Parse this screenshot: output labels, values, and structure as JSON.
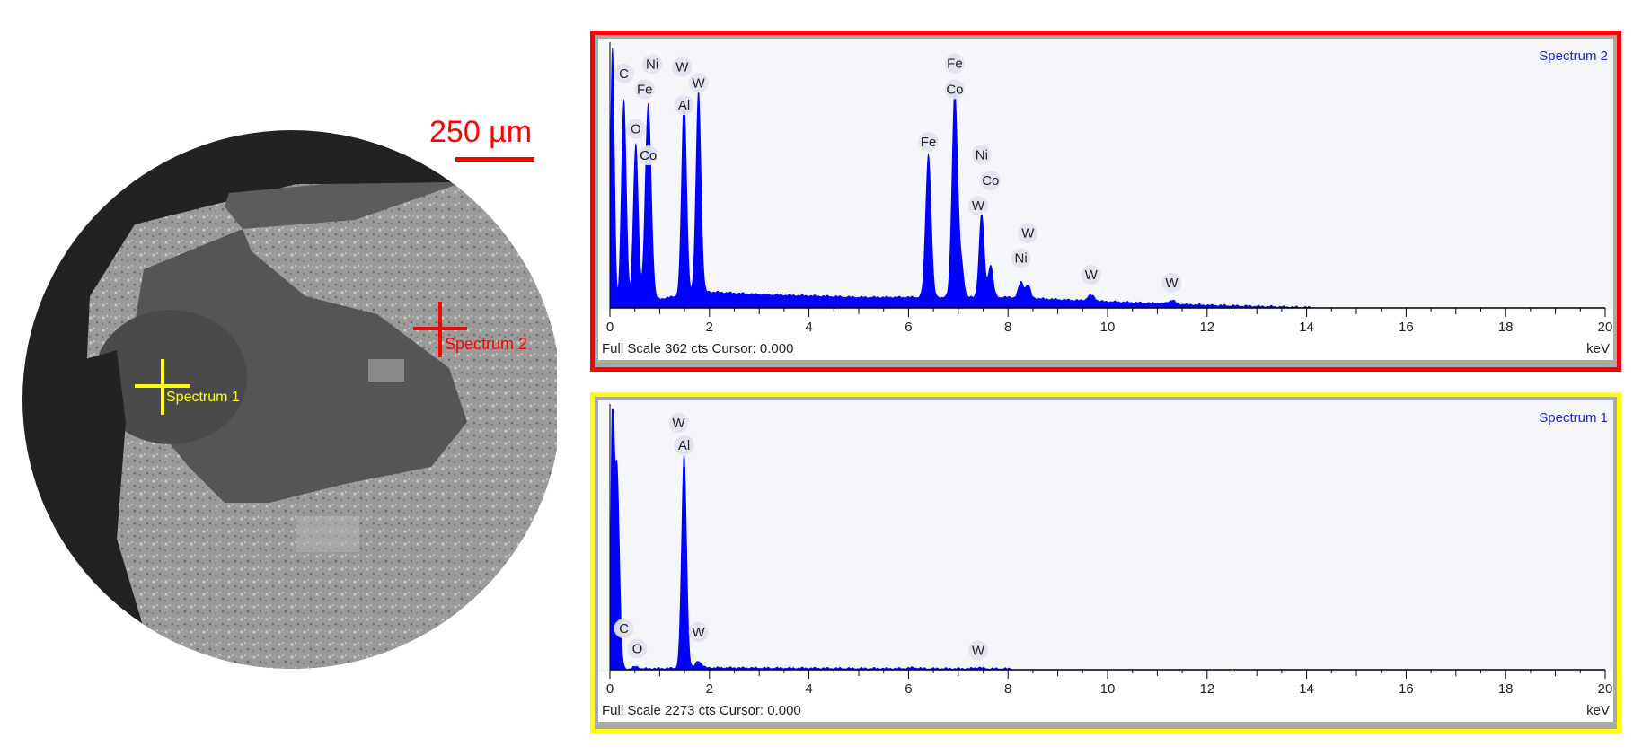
{
  "micrograph": {
    "scale_bar_label": "250 µm",
    "markers": [
      {
        "label": "Spectrum 2",
        "color": "#ff0000"
      },
      {
        "label": "Spectrum 1",
        "color": "#ffff00"
      }
    ]
  },
  "chart_data": [
    {
      "type": "area",
      "title": "Spectrum 2",
      "frame_color": "#ff0000",
      "series_color": "#0000ff",
      "xlabel": "keV",
      "xlim": [
        0,
        20
      ],
      "xticks": [
        0,
        2,
        4,
        6,
        8,
        10,
        12,
        14,
        16,
        18,
        20
      ],
      "ylim": [
        0,
        362
      ],
      "footer": "Full Scale 362 cts Cursor: 0.000",
      "grid": false,
      "peaks": [
        {
          "x": 0.05,
          "y": 362,
          "w": 0.04
        },
        {
          "x": 0.28,
          "y": 285,
          "w": 0.05
        },
        {
          "x": 0.52,
          "y": 222,
          "w": 0.05
        },
        {
          "x": 0.77,
          "y": 275,
          "w": 0.06
        },
        {
          "x": 1.49,
          "y": 274,
          "w": 0.05
        },
        {
          "x": 1.78,
          "y": 282,
          "w": 0.05
        },
        {
          "x": 6.4,
          "y": 200,
          "w": 0.055
        },
        {
          "x": 6.93,
          "y": 290,
          "w": 0.055
        },
        {
          "x": 7.06,
          "y": 45,
          "w": 0.05
        },
        {
          "x": 7.47,
          "y": 118,
          "w": 0.05
        },
        {
          "x": 7.65,
          "y": 45,
          "w": 0.05
        },
        {
          "x": 8.26,
          "y": 22,
          "w": 0.05
        },
        {
          "x": 8.4,
          "y": 18,
          "w": 0.05
        },
        {
          "x": 9.67,
          "y": 8,
          "w": 0.07
        },
        {
          "x": 11.29,
          "y": 5,
          "w": 0.07
        }
      ],
      "background": [
        [
          0,
          0
        ],
        [
          1.9,
          22
        ],
        [
          3,
          18
        ],
        [
          5,
          14
        ],
        [
          8,
          14
        ],
        [
          10,
          8
        ],
        [
          12,
          3
        ],
        [
          14,
          0
        ],
        [
          14.1,
          0
        ]
      ],
      "labels": [
        {
          "text": "C",
          "x": 0.28,
          "y": 326
        },
        {
          "text": "Ni",
          "x": 0.85,
          "y": 339
        },
        {
          "text": "Fe",
          "x": 0.7,
          "y": 304
        },
        {
          "text": "O",
          "x": 0.52,
          "y": 249
        },
        {
          "text": "Co",
          "x": 0.77,
          "y": 212
        },
        {
          "text": "W",
          "x": 1.45,
          "y": 335
        },
        {
          "text": "Al",
          "x": 1.49,
          "y": 282
        },
        {
          "text": "W",
          "x": 1.78,
          "y": 313
        },
        {
          "text": "Fe",
          "x": 6.93,
          "y": 340
        },
        {
          "text": "Co",
          "x": 6.93,
          "y": 304
        },
        {
          "text": "Fe",
          "x": 6.4,
          "y": 231
        },
        {
          "text": "Ni",
          "x": 7.47,
          "y": 213
        },
        {
          "text": "Co",
          "x": 7.65,
          "y": 177
        },
        {
          "text": "W",
          "x": 7.4,
          "y": 142
        },
        {
          "text": "W",
          "x": 8.4,
          "y": 104
        },
        {
          "text": "Ni",
          "x": 8.26,
          "y": 69
        },
        {
          "text": "W",
          "x": 9.67,
          "y": 46
        },
        {
          "text": "W",
          "x": 11.29,
          "y": 35
        }
      ]
    },
    {
      "type": "area",
      "title": "Spectrum 1",
      "frame_color": "#ffff00",
      "series_color": "#0000ff",
      "xlabel": "keV",
      "xlim": [
        0,
        20
      ],
      "xticks": [
        0,
        2,
        4,
        6,
        8,
        10,
        12,
        14,
        16,
        18,
        20
      ],
      "ylim": [
        0,
        2273
      ],
      "footer": "Full Scale 2273 cts Cursor: 0.000",
      "grid": false,
      "peaks": [
        {
          "x": 0.05,
          "y": 2273,
          "w": 0.03
        },
        {
          "x": 0.14,
          "y": 1800,
          "w": 0.05
        },
        {
          "x": 0.52,
          "y": 20,
          "w": 0.05
        },
        {
          "x": 1.49,
          "y": 1870,
          "w": 0.05
        },
        {
          "x": 1.78,
          "y": 60,
          "w": 0.06
        },
        {
          "x": 6.1,
          "y": 8,
          "w": 0.08
        },
        {
          "x": 7.4,
          "y": 10,
          "w": 0.08
        }
      ],
      "background": [
        [
          0,
          0
        ],
        [
          2,
          12
        ],
        [
          5,
          6
        ],
        [
          8,
          4
        ],
        [
          8.1,
          0
        ]
      ],
      "labels": [
        {
          "text": "W",
          "x": 1.38,
          "y": 2155
        },
        {
          "text": "Al",
          "x": 1.49,
          "y": 1960
        },
        {
          "text": "C",
          "x": 0.28,
          "y": 360
        },
        {
          "text": "O",
          "x": 0.55,
          "y": 185
        },
        {
          "text": "W",
          "x": 1.78,
          "y": 330
        },
        {
          "text": "W",
          "x": 7.4,
          "y": 170
        }
      ]
    }
  ]
}
